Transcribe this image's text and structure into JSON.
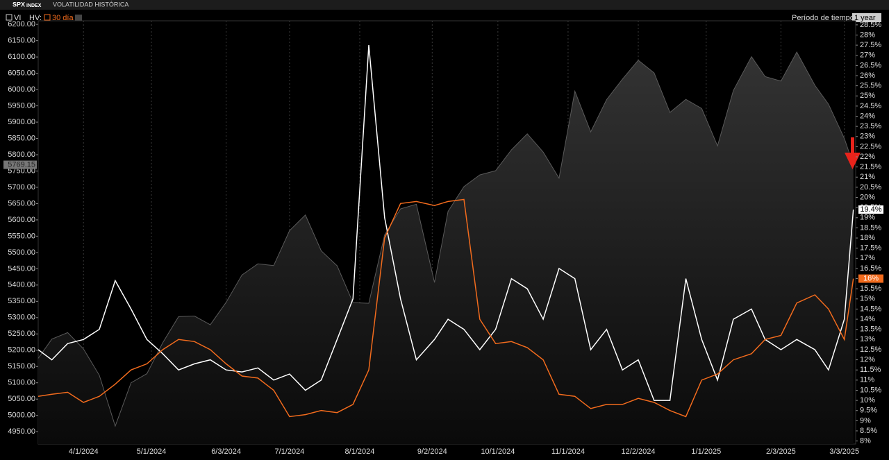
{
  "chart_data": {
    "type": "line",
    "ticker": "SPX",
    "ticker_type": "INDEX",
    "title": "VOLATILIDAD HISTÓRICA",
    "hv_label": "HV:",
    "period_label": "Período de tiempo:",
    "period": "1 year",
    "x": [
      "3/12/2024",
      "3/18/2024",
      "3/25/2024",
      "4/1/2024",
      "4/8/2024",
      "4/15/2024",
      "4/22/2024",
      "4/29/2024",
      "5/6/2024",
      "5/13/2024",
      "5/20/2024",
      "5/27/2024",
      "6/3/2024",
      "6/10/2024",
      "6/17/2024",
      "6/24/2024",
      "7/1/2024",
      "7/8/2024",
      "7/15/2024",
      "7/22/2024",
      "7/29/2024",
      "8/5/2024",
      "8/12/2024",
      "8/19/2024",
      "8/26/2024",
      "9/3/2024",
      "9/9/2024",
      "9/16/2024",
      "9/23/2024",
      "9/30/2024",
      "10/7/2024",
      "10/14/2024",
      "10/21/2024",
      "10/28/2024",
      "11/4/2024",
      "11/11/2024",
      "11/18/2024",
      "11/25/2024",
      "12/2/2024",
      "12/9/2024",
      "12/16/2024",
      "12/23/2024",
      "12/30/2024",
      "1/6/2025",
      "1/13/2025",
      "1/21/2025",
      "1/27/2025",
      "2/3/2025",
      "2/10/2025",
      "2/18/2025",
      "2/24/2025",
      "3/3/2025",
      "3/7/2025"
    ],
    "xlim": [
      "3/12/2024",
      "3/8/2025"
    ],
    "xticks": [
      "4/1/2024",
      "5/1/2024",
      "6/3/2024",
      "7/1/2024",
      "8/1/2024",
      "9/2/2024",
      "10/1/2024",
      "11/1/2024",
      "12/2/2024",
      "1/1/2025",
      "2/3/2025",
      "3/3/2025"
    ],
    "ylim": [
      4912,
      6211
    ],
    "yticks": [
      {
        "value": 4950,
        "label": "4950.00"
      },
      {
        "value": 5000,
        "label": "5000.00"
      },
      {
        "value": 5050,
        "label": "5050.00"
      },
      {
        "value": 5100,
        "label": "5100.00"
      },
      {
        "value": 5150,
        "label": "5150.00"
      },
      {
        "value": 5200,
        "label": "5200.00"
      },
      {
        "value": 5250,
        "label": "5250.00"
      },
      {
        "value": 5300,
        "label": "5300.00"
      },
      {
        "value": 5350,
        "label": "5350.00"
      },
      {
        "value": 5400,
        "label": "5400.00"
      },
      {
        "value": 5450,
        "label": "5450.00"
      },
      {
        "value": 5500,
        "label": "5500.00"
      },
      {
        "value": 5550,
        "label": "5550.00"
      },
      {
        "value": 5600,
        "label": "5600.00"
      },
      {
        "value": 5650,
        "label": "5650.00"
      },
      {
        "value": 5700,
        "label": "5700.00"
      },
      {
        "value": 5750,
        "label": "5750.00"
      },
      {
        "value": 5800,
        "label": "5800.00"
      },
      {
        "value": 5850,
        "label": "5850.00"
      },
      {
        "value": 5900,
        "label": "5900.00"
      },
      {
        "value": 5950,
        "label": "5950.00"
      },
      {
        "value": 6000,
        "label": "6000.00"
      },
      {
        "value": 6050,
        "label": "6050.00"
      },
      {
        "value": 6100,
        "label": "6100.00"
      },
      {
        "value": 6150,
        "label": "6150.00"
      },
      {
        "value": 6200,
        "label": "6200.00"
      }
    ],
    "y2lim": [
      7.85,
      28.7
    ],
    "y2ticks": [
      {
        "value": 8,
        "label": "8%"
      },
      {
        "value": 8.5,
        "label": "8.5%"
      },
      {
        "value": 9,
        "label": "9%"
      },
      {
        "value": 9.5,
        "label": "9.5%"
      },
      {
        "value": 10,
        "label": "10%"
      },
      {
        "value": 10.5,
        "label": "10.5%"
      },
      {
        "value": 11,
        "label": "11%"
      },
      {
        "value": 11.5,
        "label": "11.5%"
      },
      {
        "value": 12,
        "label": "12%"
      },
      {
        "value": 12.5,
        "label": "12.5%"
      },
      {
        "value": 13,
        "label": "13%"
      },
      {
        "value": 13.5,
        "label": "13.5%"
      },
      {
        "value": 14,
        "label": "14%"
      },
      {
        "value": 14.5,
        "label": "14.5%"
      },
      {
        "value": 15,
        "label": "15%"
      },
      {
        "value": 15.5,
        "label": "15.5%"
      },
      {
        "value": 16,
        "label": "16%"
      },
      {
        "value": 16.5,
        "label": "16.5%"
      },
      {
        "value": 17,
        "label": "17%"
      },
      {
        "value": 17.5,
        "label": "17.5%"
      },
      {
        "value": 18,
        "label": "18%"
      },
      {
        "value": 18.5,
        "label": "18.5%"
      },
      {
        "value": 19,
        "label": "19%"
      },
      {
        "value": 19.5,
        "label": "19.5%"
      },
      {
        "value": 20,
        "label": "20%"
      },
      {
        "value": 20.5,
        "label": "20.5%"
      },
      {
        "value": 21,
        "label": "21%"
      },
      {
        "value": 21.5,
        "label": "21.5%"
      },
      {
        "value": 22,
        "label": "22%"
      },
      {
        "value": 22.5,
        "label": "22.5%"
      },
      {
        "value": 23,
        "label": "23%"
      },
      {
        "value": 23.5,
        "label": "23.5%"
      },
      {
        "value": 24,
        "label": "24%"
      },
      {
        "value": 24.5,
        "label": "24.5%"
      },
      {
        "value": 25,
        "label": "25%"
      },
      {
        "value": 25.5,
        "label": "25.5%"
      },
      {
        "value": 26,
        "label": "26%"
      },
      {
        "value": 26.5,
        "label": "26.5%"
      },
      {
        "value": 27,
        "label": "27%"
      },
      {
        "value": 27.5,
        "label": "27.5%"
      },
      {
        "value": 28,
        "label": "28%"
      },
      {
        "value": 28.5,
        "label": "28.5%"
      }
    ],
    "grid": true,
    "series": [
      {
        "style": "area",
        "color": "#5a5a5a",
        "axis": "y",
        "values": [
          5175,
          5234,
          5254,
          5204,
          5123,
          4967,
          5100,
          5128,
          5223,
          5303,
          5305,
          5278,
          5347,
          5431,
          5465,
          5460,
          5567,
          5615,
          5505,
          5459,
          5346,
          5344,
          5554,
          5634,
          5648,
          5408,
          5626,
          5702,
          5738,
          5751,
          5815,
          5864,
          5808,
          5728,
          5995,
          5870,
          5969,
          6032,
          6090,
          6051,
          5930,
          5970,
          5942,
          5827,
          5997,
          6101,
          6040,
          6026,
          6115,
          6013,
          5955,
          5850,
          5769.15
        ]
      },
      {
        "name": "VI",
        "style": "line",
        "color": "#ffffff",
        "axis": "y2",
        "values": [
          12.5,
          12,
          12.8,
          13,
          13.5,
          15.9,
          14.5,
          13,
          12.3,
          11.5,
          11.8,
          12,
          11.5,
          11.4,
          11.6,
          11,
          11.3,
          10.5,
          11,
          13,
          15,
          27.5,
          19,
          15,
          12,
          13,
          14,
          13.5,
          12.5,
          13.5,
          16,
          15.5,
          14,
          16.5,
          16,
          12.5,
          13.5,
          11.5,
          12,
          10,
          10,
          16,
          13,
          11,
          14,
          14.5,
          13,
          12.5,
          13,
          12.5,
          11.5,
          14,
          19.4
        ],
        "value_labels": [
          null,
          null,
          null,
          null,
          null,
          null,
          null,
          null,
          null,
          null,
          null,
          null,
          null,
          null,
          null,
          null,
          null,
          null,
          null,
          null,
          null,
          null,
          null,
          null,
          null,
          null,
          null,
          null,
          null,
          null,
          null,
          null,
          null,
          null,
          null,
          null,
          null,
          null,
          null,
          null,
          null,
          null,
          null,
          null,
          null,
          null,
          null,
          null,
          null,
          null,
          null,
          null,
          "19.4%"
        ]
      },
      {
        "name": "30 día",
        "style": "line",
        "color": "#f26b1d",
        "axis": "y2",
        "values": [
          10.2,
          10.3,
          10.4,
          9.9,
          10.2,
          10.8,
          11.5,
          11.8,
          12.5,
          13,
          12.9,
          12.5,
          11.8,
          11.2,
          11.1,
          10.5,
          9.2,
          9.3,
          9.5,
          9.4,
          9.8,
          11.5,
          18,
          19.7,
          19.8,
          19.6,
          19.8,
          19.9,
          14,
          12.8,
          12.9,
          12.6,
          12,
          10.3,
          10.2,
          9.6,
          9.8,
          9.8,
          10.1,
          9.9,
          9.5,
          9.2,
          11,
          11.3,
          12,
          12.3,
          13,
          13.2,
          14.8,
          15.2,
          14.5,
          13,
          16
        ],
        "value_labels": [
          null,
          null,
          null,
          null,
          null,
          null,
          null,
          null,
          null,
          null,
          null,
          null,
          null,
          null,
          null,
          null,
          null,
          null,
          null,
          null,
          null,
          null,
          null,
          null,
          null,
          null,
          null,
          null,
          null,
          null,
          null,
          null,
          null,
          null,
          null,
          null,
          null,
          null,
          null,
          null,
          null,
          null,
          null,
          null,
          null,
          null,
          null,
          null,
          null,
          null,
          null,
          null,
          "16%"
        ]
      }
    ]
  }
}
